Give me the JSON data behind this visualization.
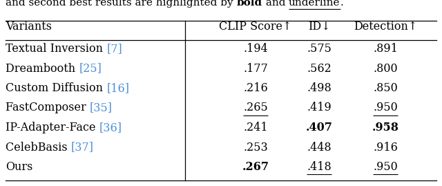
{
  "columns": [
    "Variants",
    "CLIP Score↑",
    "ID↓",
    "Detection↑"
  ],
  "rows": [
    {
      "variant": "Textual Inversion ",
      "ref": "[7]",
      "clip": {
        "text": ".194",
        "bold": false,
        "underline": false
      },
      "id": {
        "text": ".575",
        "bold": false,
        "underline": false
      },
      "detection": {
        "text": ".891",
        "bold": false,
        "underline": false
      }
    },
    {
      "variant": "Dreambooth ",
      "ref": "[25]",
      "clip": {
        "text": ".177",
        "bold": false,
        "underline": false
      },
      "id": {
        "text": ".562",
        "bold": false,
        "underline": false
      },
      "detection": {
        "text": ".800",
        "bold": false,
        "underline": false
      }
    },
    {
      "variant": "Custom Diffusion ",
      "ref": "[16]",
      "clip": {
        "text": ".216",
        "bold": false,
        "underline": false
      },
      "id": {
        "text": ".498",
        "bold": false,
        "underline": false
      },
      "detection": {
        "text": ".850",
        "bold": false,
        "underline": false
      }
    },
    {
      "variant": "FastComposer ",
      "ref": "[35]",
      "clip": {
        "text": ".265",
        "bold": false,
        "underline": true
      },
      "id": {
        "text": ".419",
        "bold": false,
        "underline": false
      },
      "detection": {
        "text": ".950",
        "bold": false,
        "underline": true
      }
    },
    {
      "variant": "IP-Adapter-Face ",
      "ref": "[36]",
      "clip": {
        "text": ".241",
        "bold": false,
        "underline": false
      },
      "id": {
        "text": ".407",
        "bold": true,
        "underline": false
      },
      "detection": {
        "text": ".958",
        "bold": true,
        "underline": false
      }
    },
    {
      "variant": "CelebBasis ",
      "ref": "[37]",
      "clip": {
        "text": ".253",
        "bold": false,
        "underline": false
      },
      "id": {
        "text": ".448",
        "bold": false,
        "underline": false
      },
      "detection": {
        "text": ".916",
        "bold": false,
        "underline": false
      }
    },
    {
      "variant": "Ours",
      "ref": "",
      "clip": {
        "text": ".267",
        "bold": true,
        "underline": false
      },
      "id": {
        "text": ".418",
        "bold": false,
        "underline": true
      },
      "detection": {
        "text": ".950",
        "bold": false,
        "underline": true
      }
    }
  ],
  "ref_color": "#4a90d9",
  "font_size": 11.5,
  "header_font_size": 11.0,
  "bg_color": "white"
}
